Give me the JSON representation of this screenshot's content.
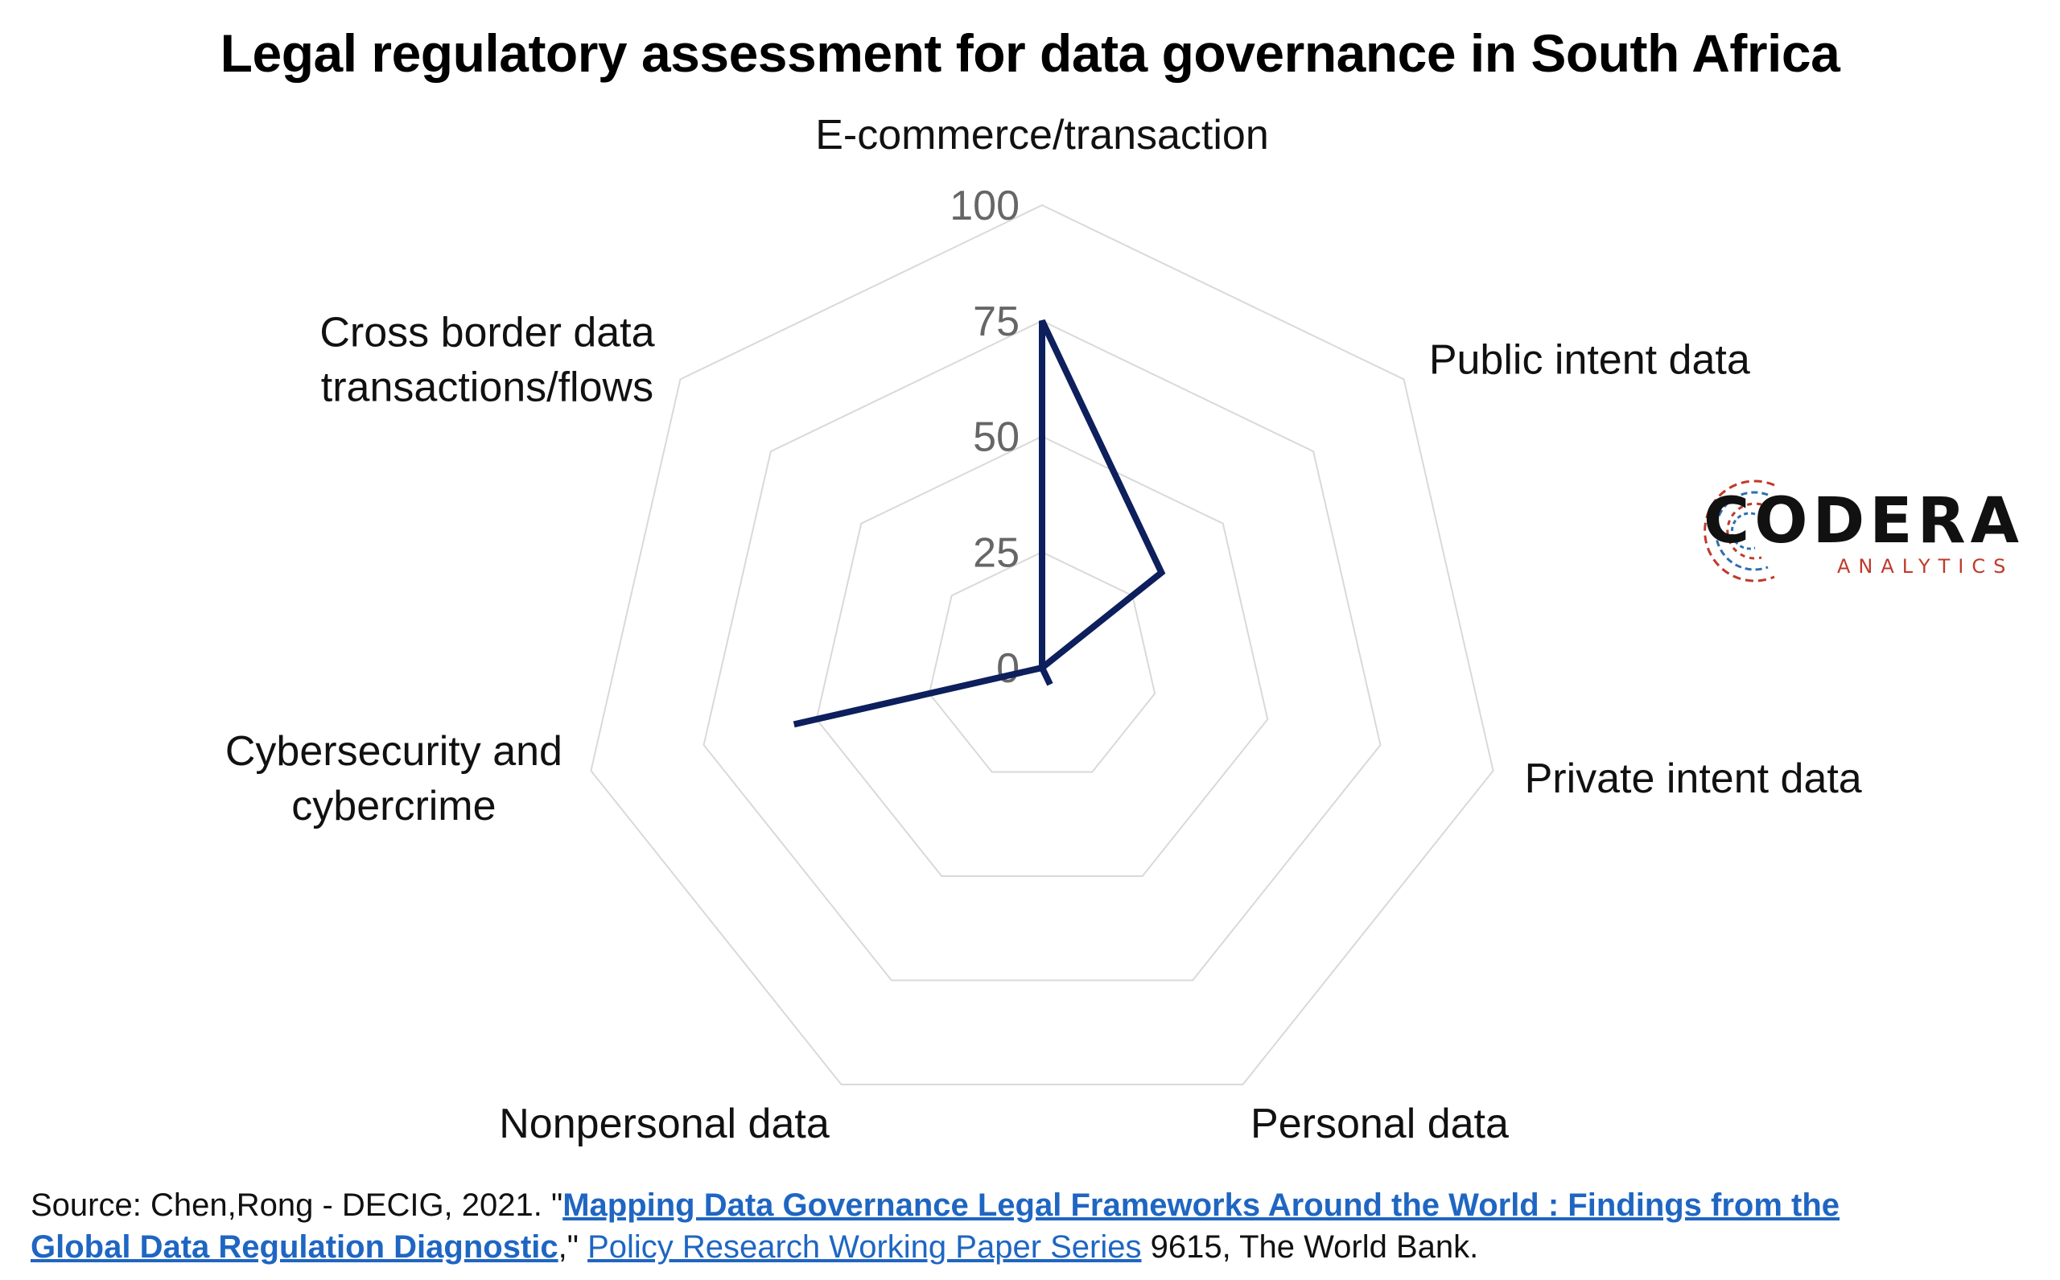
{
  "chart_data": {
    "type": "radar",
    "title": "Legal regulatory assessment for data governance in South Africa",
    "axes": [
      "E-commerce/transaction",
      "Public intent data",
      "Private intent data",
      "Personal data",
      "Nonpersonal data",
      "Cybersecurity and cybercrime",
      "Cross border data transactions/flows"
    ],
    "axis_label_lines": [
      [
        "E-commerce/transaction"
      ],
      [
        "Public intent data"
      ],
      [
        "Private intent data"
      ],
      [
        "Personal data"
      ],
      [
        "Nonpersonal data"
      ],
      [
        "Cybersecurity and",
        "cybercrime"
      ],
      [
        "Cross border data",
        "transactions/flows"
      ]
    ],
    "series": [
      {
        "values": [
          75,
          33,
          0,
          4,
          0,
          55,
          0
        ],
        "color": "#0d1f5c"
      }
    ],
    "ticks": [
      "0",
      "25",
      "50",
      "75",
      "100"
    ],
    "rmin": 0,
    "rmax": 100,
    "grid": true,
    "grid_color": "#d9d9d9"
  },
  "logo": {
    "word": "CODERA",
    "sub": "ANALYTICS"
  },
  "source": {
    "prefix": "Source: Chen,Rong - DECIG, 2021. \"",
    "link1": "Mapping Data Governance Legal Frameworks Around the World : Findings from the Global Data Regulation Diagnostic",
    "middle": ",\" ",
    "link2": "Policy Research Working Paper Series",
    "suffix": " 9615, The World Bank."
  }
}
